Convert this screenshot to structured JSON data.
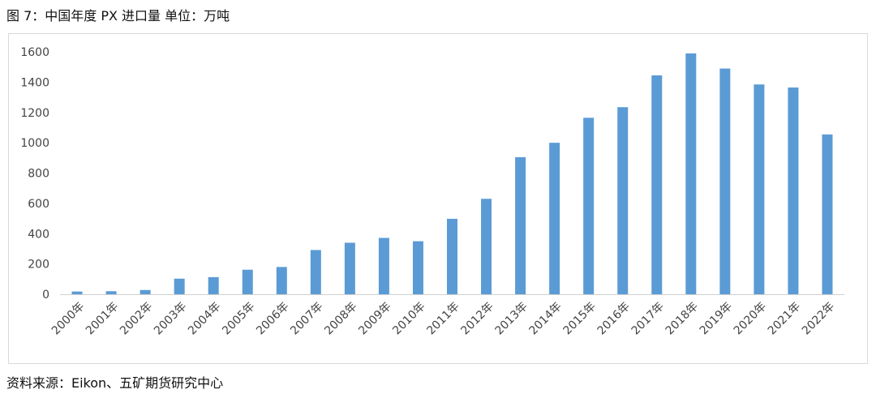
{
  "figure": {
    "title": "图 7：中国年度 PX 进口量 单位：万吨",
    "source": "资料来源：Eikon、五矿期货研究中心"
  },
  "chart_data": {
    "type": "bar",
    "categories": [
      "2000年",
      "2001年",
      "2002年",
      "2003年",
      "2004年",
      "2005年",
      "2006年",
      "2007年",
      "2008年",
      "2009年",
      "2010年",
      "2011年",
      "2012年",
      "2013年",
      "2014年",
      "2015年",
      "2016年",
      "2017年",
      "2018年",
      "2019年",
      "2020年",
      "2021年",
      "2022年"
    ],
    "values": [
      18,
      20,
      28,
      103,
      113,
      162,
      180,
      292,
      340,
      372,
      350,
      498,
      630,
      905,
      1000,
      1165,
      1235,
      1445,
      1590,
      1490,
      1385,
      1365,
      1055
    ],
    "ylim": [
      0,
      1600
    ],
    "yticks": [
      0,
      200,
      400,
      600,
      800,
      1000,
      1200,
      1400,
      1600
    ],
    "bar_color": "#5b9bd5",
    "grid": false,
    "legend": "none"
  }
}
